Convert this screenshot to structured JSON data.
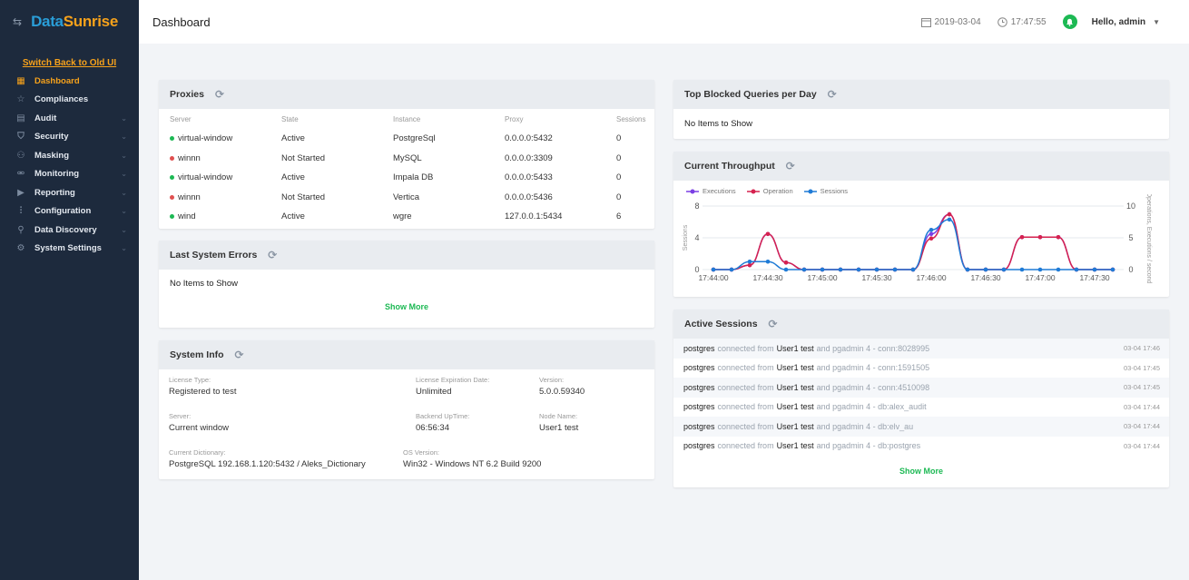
{
  "brand": {
    "part1": "Data",
    "part2": "Sunrise"
  },
  "sidebar": {
    "switch_link": "Switch Back to Old UI",
    "items": [
      {
        "label": "Dashboard",
        "icon": "dashboard-icon",
        "active": true,
        "expandable": false
      },
      {
        "label": "Compliances",
        "icon": "star-icon",
        "active": false,
        "expandable": false
      },
      {
        "label": "Audit",
        "icon": "audit-icon",
        "active": false,
        "expandable": true
      },
      {
        "label": "Security",
        "icon": "shield-icon",
        "active": false,
        "expandable": true
      },
      {
        "label": "Masking",
        "icon": "mask-icon",
        "active": false,
        "expandable": true
      },
      {
        "label": "Monitoring",
        "icon": "binoculars-icon",
        "active": false,
        "expandable": true
      },
      {
        "label": "Reporting",
        "icon": "report-icon",
        "active": false,
        "expandable": true
      },
      {
        "label": "Configuration",
        "icon": "sliders-icon",
        "active": false,
        "expandable": true
      },
      {
        "label": "Data Discovery",
        "icon": "search-icon",
        "active": false,
        "expandable": true
      },
      {
        "label": "System Settings",
        "icon": "gear-icon",
        "active": false,
        "expandable": true
      }
    ]
  },
  "header": {
    "title": "Dashboard",
    "date": "2019-03-04",
    "time": "17:47:55",
    "greeting": "Hello, admin"
  },
  "proxies": {
    "title": "Proxies",
    "columns": [
      "Server",
      "State",
      "Instance",
      "Proxy",
      "Sessions"
    ],
    "rows": [
      {
        "server": "virtual-window",
        "state": "Active",
        "instance": "PostgreSql",
        "proxy": "0.0.0.0:5432",
        "sessions": "0"
      },
      {
        "server": "winnn",
        "state": "Not Started",
        "instance": "MySQL",
        "proxy": "0.0.0.0:3309",
        "sessions": "0"
      },
      {
        "server": "virtual-window",
        "state": "Active",
        "instance": "Impala DB",
        "proxy": "0.0.0.0:5433",
        "sessions": "0"
      },
      {
        "server": "winnn",
        "state": "Not Started",
        "instance": "Vertica",
        "proxy": "0.0.0.0:5436",
        "sessions": "0"
      },
      {
        "server": "wind",
        "state": "Active",
        "instance": "wgre",
        "proxy": "127.0.0.1:5434",
        "sessions": "6"
      }
    ]
  },
  "errors": {
    "title": "Last System Errors",
    "empty": "No Items to Show",
    "show_more": "Show More"
  },
  "system_info": {
    "title": "System Info",
    "license_type_label": "License Type:",
    "license_type": "Registered to test",
    "license_exp_label": "License Expiration Date:",
    "license_exp": "Unlimited",
    "version_label": "Version:",
    "version": "5.0.0.59340",
    "server_label": "Server:",
    "server": "Current window",
    "uptime_label": "Backend UpTime:",
    "uptime": "06:56:34",
    "node_label": "Node Name:",
    "node": "User1 test",
    "dictionary_label": "Current Dictionary:",
    "dictionary": "PostgreSQL 192.168.1.120:5432 / Aleks_Dictionary",
    "os_label": "OS Version:",
    "os": "Win32 - Windows NT 6.2 Build 9200"
  },
  "blocked": {
    "title": "Top Blocked Queries per Day",
    "empty": "No Items to Show"
  },
  "throughput": {
    "title": "Current Throughput",
    "legend": [
      "Executions",
      "Operation",
      "Sessions"
    ]
  },
  "chart_data": {
    "type": "line",
    "x": [
      "17:44:00",
      "17:44:10",
      "17:44:20",
      "17:44:30",
      "17:44:40",
      "17:44:50",
      "17:45:00",
      "17:45:10",
      "17:45:20",
      "17:45:30",
      "17:45:40",
      "17:45:50",
      "17:46:00",
      "17:46:10",
      "17:46:20",
      "17:46:30",
      "17:46:40",
      "17:46:50",
      "17:47:00",
      "17:47:10",
      "17:47:20",
      "17:47:30",
      "17:47:40"
    ],
    "x_tick_labels": [
      "17:44:00",
      "17:44:30",
      "17:45:00",
      "17:45:30",
      "17:46:00",
      "17:46:30",
      "17:47:00",
      "17:47:30"
    ],
    "ylabel": "Sessions",
    "ylabel_right": "Operations, Executions / second",
    "ylim": [
      0,
      8
    ],
    "yticks": [
      "0",
      "4",
      "8"
    ],
    "ylim_right": [
      0,
      10
    ],
    "yticks_right": [
      "0",
      "5",
      "10"
    ],
    "series": [
      {
        "name": "Executions",
        "axis": "right",
        "color": "#7b3fe4",
        "values": [
          0,
          0,
          0.7,
          5.6,
          1.1,
          0,
          0,
          0,
          0,
          0,
          0,
          0,
          5.6,
          8.7,
          0,
          0,
          0,
          5.1,
          5.1,
          5.1,
          0,
          0,
          0
        ]
      },
      {
        "name": "Operation",
        "axis": "right",
        "color": "#d6224f",
        "values": [
          0,
          0,
          0.7,
          5.6,
          1.1,
          0,
          0,
          0,
          0,
          0,
          0,
          0,
          4.9,
          8.7,
          0,
          0,
          0,
          5.1,
          5.1,
          5.1,
          0,
          0,
          0
        ]
      },
      {
        "name": "Sessions",
        "axis": "left",
        "color": "#1f7bd6",
        "values": [
          0,
          0,
          1,
          1,
          0,
          0,
          0,
          0,
          0,
          0,
          0,
          0,
          5,
          6.3,
          0,
          0,
          0,
          0,
          0,
          0,
          0,
          0,
          0
        ]
      }
    ]
  },
  "active_sessions": {
    "title": "Active Sessions",
    "show_more": "Show More",
    "rows": [
      {
        "user": "postgres",
        "conn": "connected from",
        "from": "User1 test",
        "via": "and pgadmin 4 - conn:8028995",
        "time": "03-04 17:46"
      },
      {
        "user": "postgres",
        "conn": "connected from",
        "from": "User1 test",
        "via": "and pgadmin 4 - conn:1591505",
        "time": "03-04 17:45"
      },
      {
        "user": "postgres",
        "conn": "connected from",
        "from": "User1 test",
        "via": "and pgadmin 4 - conn:4510098",
        "time": "03-04 17:45"
      },
      {
        "user": "postgres",
        "conn": "connected from",
        "from": "User1 test",
        "via": "and pgadmin 4 - db:alex_audit",
        "time": "03-04 17:44"
      },
      {
        "user": "postgres",
        "conn": "connected from",
        "from": "User1 test",
        "via": "and pgadmin 4 - db:elv_au",
        "time": "03-04 17:44"
      },
      {
        "user": "postgres",
        "conn": "connected from",
        "from": "User1 test",
        "via": "and pgadmin 4 - db:postgres",
        "time": "03-04 17:44"
      }
    ]
  },
  "colors": {
    "accent": "#f7a21b",
    "brand_blue": "#2a9ed8",
    "active": "#1db954",
    "error": "#e05050",
    "sidebar_bg": "#1d2a3d"
  }
}
